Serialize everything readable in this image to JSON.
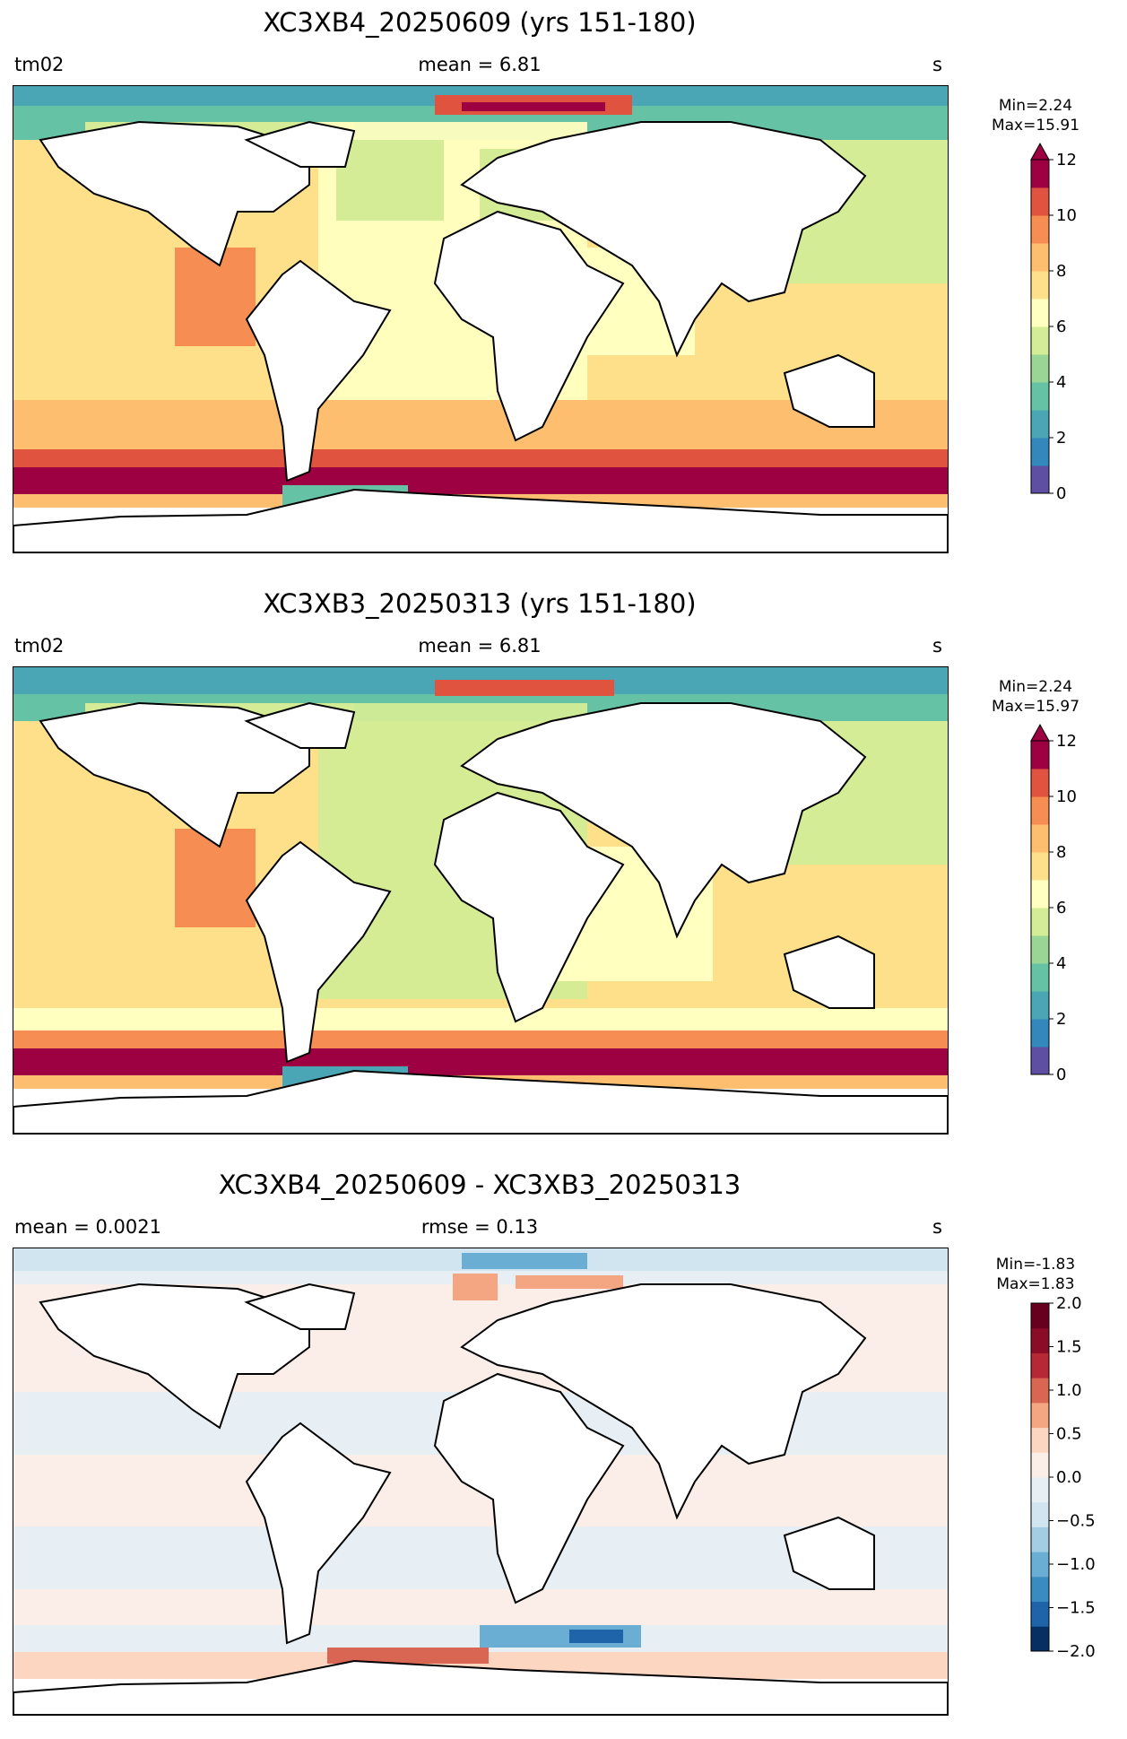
{
  "panels": [
    {
      "title": "XC3XB4_20250609 (yrs 151-180)",
      "left_label": "tm02",
      "center_label": "mean = 6.81",
      "right_label": "s",
      "min_label": "Min=2.24",
      "max_label": "Max=15.91",
      "colorbar": {
        "ticks": [
          "0",
          "2",
          "4",
          "6",
          "8",
          "10",
          "12"
        ],
        "colors": [
          "#5e4fa2",
          "#3288bd",
          "#4aa6b5",
          "#66c2a5",
          "#99d594",
          "#d3ec95",
          "#ffffbf",
          "#fee08b",
          "#fdbf6f",
          "#f68d52",
          "#e0543f",
          "#9e0142"
        ],
        "extend": "max"
      }
    },
    {
      "title": "XC3XB3_20250313 (yrs 151-180)",
      "left_label": "tm02",
      "center_label": "mean = 6.81",
      "right_label": "s",
      "min_label": "Min=2.24",
      "max_label": "Max=15.97",
      "colorbar": {
        "ticks": [
          "0",
          "2",
          "4",
          "6",
          "8",
          "10",
          "12"
        ],
        "colors": [
          "#5e4fa2",
          "#3288bd",
          "#4aa6b5",
          "#66c2a5",
          "#99d594",
          "#d3ec95",
          "#ffffbf",
          "#fee08b",
          "#fdbf6f",
          "#f68d52",
          "#e0543f",
          "#9e0142"
        ],
        "extend": "max"
      }
    },
    {
      "title": "XC3XB4_20250609 - XC3XB3_20250313",
      "left_label": "mean = 0.0021",
      "center_label": "rmse = 0.13",
      "right_label": "s",
      "min_label": "Min=-1.83",
      "max_label": "Max=1.83",
      "colorbar": {
        "ticks": [
          "2.0",
          "1.5",
          "1.0",
          "0.5",
          "0.0",
          "−0.5",
          "−1.0",
          "−1.5",
          "−2.0"
        ],
        "colors": [
          "#053061",
          "#1f63a8",
          "#3a8bc1",
          "#6aaed3",
          "#a3cde3",
          "#d1e5f0",
          "#e7eff5",
          "#fbeee8",
          "#fcd6c0",
          "#f4a582",
          "#d86652",
          "#b72835",
          "#8a0c26",
          "#67001f"
        ],
        "extend": "none"
      }
    }
  ]
}
